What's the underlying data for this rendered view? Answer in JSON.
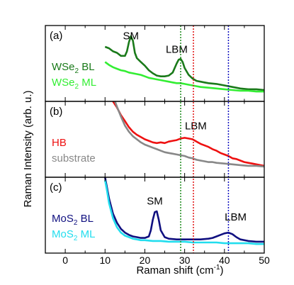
{
  "chart_data": {
    "type": "line",
    "xlabel": "Raman shift (cm",
    "xlabel_sup": "-1",
    "xlabel_end": ")",
    "ylabel": "Raman Intensity (arb. u.)",
    "xlim": [
      -5,
      50
    ],
    "xticks": [
      0,
      10,
      20,
      30,
      40,
      50
    ],
    "vertical_lines": [
      {
        "x": 29.0,
        "color": "#1a8a1a"
      },
      {
        "x": 32.2,
        "color": "#e01010"
      },
      {
        "x": 41.0,
        "color": "#1010c0"
      }
    ],
    "panels": [
      {
        "label": "(a)",
        "annotations": [
          {
            "text": "SM",
            "x": 16.5,
            "y": 0.82
          },
          {
            "text": "LBM",
            "x": 28.0,
            "y": 0.64
          }
        ],
        "series": [
          {
            "name": "WSe",
            "name_sub": "2",
            "name_end": " BL",
            "color": "#1a7a1a",
            "points": [
              [
                10,
                0.72
              ],
              [
                11,
                0.7
              ],
              [
                12,
                0.66
              ],
              [
                13,
                0.64
              ],
              [
                14,
                0.6
              ],
              [
                15,
                0.6
              ],
              [
                15.5,
                0.66
              ],
              [
                16,
                0.78
              ],
              [
                16.5,
                0.86
              ],
              [
                17,
                0.8
              ],
              [
                17.5,
                0.64
              ],
              [
                18,
                0.57
              ],
              [
                19,
                0.52
              ],
              [
                20,
                0.47
              ],
              [
                21,
                0.41
              ],
              [
                22,
                0.37
              ],
              [
                23,
                0.34
              ],
              [
                24,
                0.33
              ],
              [
                25,
                0.33
              ],
              [
                26,
                0.34
              ],
              [
                27,
                0.38
              ],
              [
                27.5,
                0.44
              ],
              [
                28,
                0.5
              ],
              [
                28.5,
                0.55
              ],
              [
                29,
                0.56
              ],
              [
                29.5,
                0.52
              ],
              [
                30,
                0.44
              ],
              [
                31,
                0.35
              ],
              [
                32,
                0.3
              ],
              [
                33,
                0.27
              ],
              [
                34,
                0.26
              ],
              [
                35,
                0.25
              ],
              [
                36,
                0.24
              ],
              [
                38,
                0.23
              ],
              [
                40,
                0.21
              ],
              [
                42,
                0.19
              ],
              [
                44,
                0.17
              ],
              [
                46,
                0.16
              ],
              [
                48,
                0.16
              ],
              [
                50,
                0.15
              ]
            ]
          },
          {
            "name": "WSe",
            "name_sub": "2",
            "name_end": " ML",
            "color": "#33ee33",
            "points": [
              [
                10,
                0.52
              ],
              [
                11,
                0.48
              ],
              [
                12,
                0.45
              ],
              [
                13,
                0.43
              ],
              [
                14,
                0.41
              ],
              [
                15,
                0.4
              ],
              [
                16,
                0.38
              ],
              [
                17,
                0.37
              ],
              [
                18,
                0.36
              ],
              [
                19,
                0.35
              ],
              [
                20,
                0.33
              ],
              [
                21,
                0.31
              ],
              [
                22,
                0.3
              ],
              [
                23,
                0.29
              ],
              [
                24,
                0.28
              ],
              [
                25,
                0.27
              ],
              [
                26,
                0.26
              ],
              [
                27,
                0.25
              ],
              [
                28,
                0.24
              ],
              [
                29,
                0.24
              ],
              [
                30,
                0.23
              ],
              [
                31,
                0.22
              ],
              [
                32,
                0.21
              ],
              [
                33,
                0.2
              ],
              [
                34,
                0.19
              ],
              [
                36,
                0.18
              ],
              [
                38,
                0.17
              ],
              [
                40,
                0.16
              ],
              [
                42,
                0.15
              ],
              [
                44,
                0.14
              ],
              [
                46,
                0.14
              ],
              [
                48,
                0.13
              ],
              [
                50,
                0.13
              ]
            ]
          }
        ]
      },
      {
        "label": "(b)",
        "annotations": [
          {
            "text": "LBM",
            "x": 32.8,
            "y": 0.63
          }
        ],
        "series": [
          {
            "name": "HB",
            "color": "#ee1111",
            "points": [
              [
                12,
                1.0
              ],
              [
                13,
                0.92
              ],
              [
                14,
                0.82
              ],
              [
                15,
                0.74
              ],
              [
                16,
                0.66
              ],
              [
                17,
                0.6
              ],
              [
                18,
                0.56
              ],
              [
                19,
                0.53
              ],
              [
                20,
                0.5
              ],
              [
                21,
                0.48
              ],
              [
                22,
                0.46
              ],
              [
                23,
                0.45
              ],
              [
                24,
                0.46
              ],
              [
                25,
                0.45
              ],
              [
                26,
                0.47
              ],
              [
                27,
                0.48
              ],
              [
                28,
                0.49
              ],
              [
                29,
                0.51
              ],
              [
                30,
                0.52
              ],
              [
                31,
                0.51
              ],
              [
                32,
                0.5
              ],
              [
                33,
                0.47
              ],
              [
                34,
                0.44
              ],
              [
                35,
                0.42
              ],
              [
                36,
                0.4
              ],
              [
                37,
                0.37
              ],
              [
                38,
                0.35
              ],
              [
                39,
                0.32
              ],
              [
                40,
                0.3
              ],
              [
                41,
                0.28
              ],
              [
                42,
                0.25
              ],
              [
                43,
                0.24
              ],
              [
                44,
                0.22
              ],
              [
                45,
                0.2
              ],
              [
                46,
                0.19
              ],
              [
                47,
                0.18
              ],
              [
                48,
                0.17
              ],
              [
                49,
                0.16
              ],
              [
                50,
                0.15
              ]
            ]
          },
          {
            "name": "substrate",
            "color": "#888888",
            "points": [
              [
                12.5,
                1.0
              ],
              [
                13,
                0.93
              ],
              [
                14,
                0.8
              ],
              [
                15,
                0.68
              ],
              [
                16,
                0.6
              ],
              [
                17,
                0.54
              ],
              [
                18,
                0.5
              ],
              [
                19,
                0.46
              ],
              [
                20,
                0.43
              ],
              [
                21,
                0.41
              ],
              [
                22,
                0.39
              ],
              [
                23,
                0.37
              ],
              [
                24,
                0.35
              ],
              [
                25,
                0.33
              ],
              [
                26,
                0.32
              ],
              [
                27,
                0.31
              ],
              [
                28,
                0.3
              ],
              [
                29,
                0.29
              ],
              [
                30,
                0.28
              ],
              [
                31,
                0.26
              ],
              [
                32,
                0.25
              ],
              [
                33,
                0.23
              ],
              [
                34,
                0.22
              ],
              [
                35,
                0.21
              ],
              [
                36,
                0.2
              ],
              [
                37,
                0.2
              ],
              [
                38,
                0.19
              ],
              [
                40,
                0.18
              ],
              [
                42,
                0.17
              ],
              [
                44,
                0.16
              ],
              [
                46,
                0.15
              ],
              [
                48,
                0.15
              ],
              [
                50,
                0.14
              ]
            ]
          }
        ]
      },
      {
        "label": "(c)",
        "annotations": [
          {
            "text": "SM",
            "x": 22.5,
            "y": 0.64
          },
          {
            "text": "LBM",
            "x": 42.8,
            "y": 0.43
          }
        ],
        "series": [
          {
            "name": "MoS",
            "name_sub": "2",
            "name_end": " BL",
            "color": "#101080",
            "points": [
              [
                10,
                1.0
              ],
              [
                10.5,
                0.86
              ],
              [
                11,
                0.72
              ],
              [
                12,
                0.52
              ],
              [
                13,
                0.4
              ],
              [
                14,
                0.32
              ],
              [
                15,
                0.27
              ],
              [
                16,
                0.24
              ],
              [
                17,
                0.22
              ],
              [
                18,
                0.21
              ],
              [
                19,
                0.2
              ],
              [
                20,
                0.2
              ],
              [
                21,
                0.22
              ],
              [
                21.5,
                0.3
              ],
              [
                22,
                0.44
              ],
              [
                22.5,
                0.54
              ],
              [
                23,
                0.55
              ],
              [
                23.5,
                0.44
              ],
              [
                24,
                0.3
              ],
              [
                25,
                0.21
              ],
              [
                26,
                0.19
              ],
              [
                28,
                0.18
              ],
              [
                30,
                0.18
              ],
              [
                32,
                0.18
              ],
              [
                34,
                0.18
              ],
              [
                36,
                0.19
              ],
              [
                37,
                0.2
              ],
              [
                38,
                0.22
              ],
              [
                39,
                0.24
              ],
              [
                40,
                0.26
              ],
              [
                41,
                0.27
              ],
              [
                42,
                0.25
              ],
              [
                43,
                0.21
              ],
              [
                44,
                0.18
              ],
              [
                46,
                0.16
              ],
              [
                48,
                0.15
              ],
              [
                50,
                0.15
              ]
            ]
          },
          {
            "name": "MoS",
            "name_sub": "2",
            "name_end": " ML",
            "color": "#22ddee",
            "points": [
              [
                10,
                0.96
              ],
              [
                10.5,
                0.82
              ],
              [
                11,
                0.66
              ],
              [
                12,
                0.46
              ],
              [
                13,
                0.34
              ],
              [
                14,
                0.27
              ],
              [
                15,
                0.23
              ],
              [
                16,
                0.21
              ],
              [
                17,
                0.19
              ],
              [
                18,
                0.18
              ],
              [
                19,
                0.17
              ],
              [
                20,
                0.17
              ],
              [
                22,
                0.16
              ],
              [
                24,
                0.16
              ],
              [
                26,
                0.15
              ],
              [
                28,
                0.15
              ],
              [
                30,
                0.15
              ],
              [
                32,
                0.14
              ],
              [
                34,
                0.14
              ],
              [
                36,
                0.14
              ],
              [
                38,
                0.14
              ],
              [
                40,
                0.13
              ],
              [
                42,
                0.13
              ],
              [
                44,
                0.13
              ],
              [
                46,
                0.13
              ],
              [
                48,
                0.12
              ],
              [
                50,
                0.12
              ]
            ]
          }
        ]
      }
    ]
  }
}
